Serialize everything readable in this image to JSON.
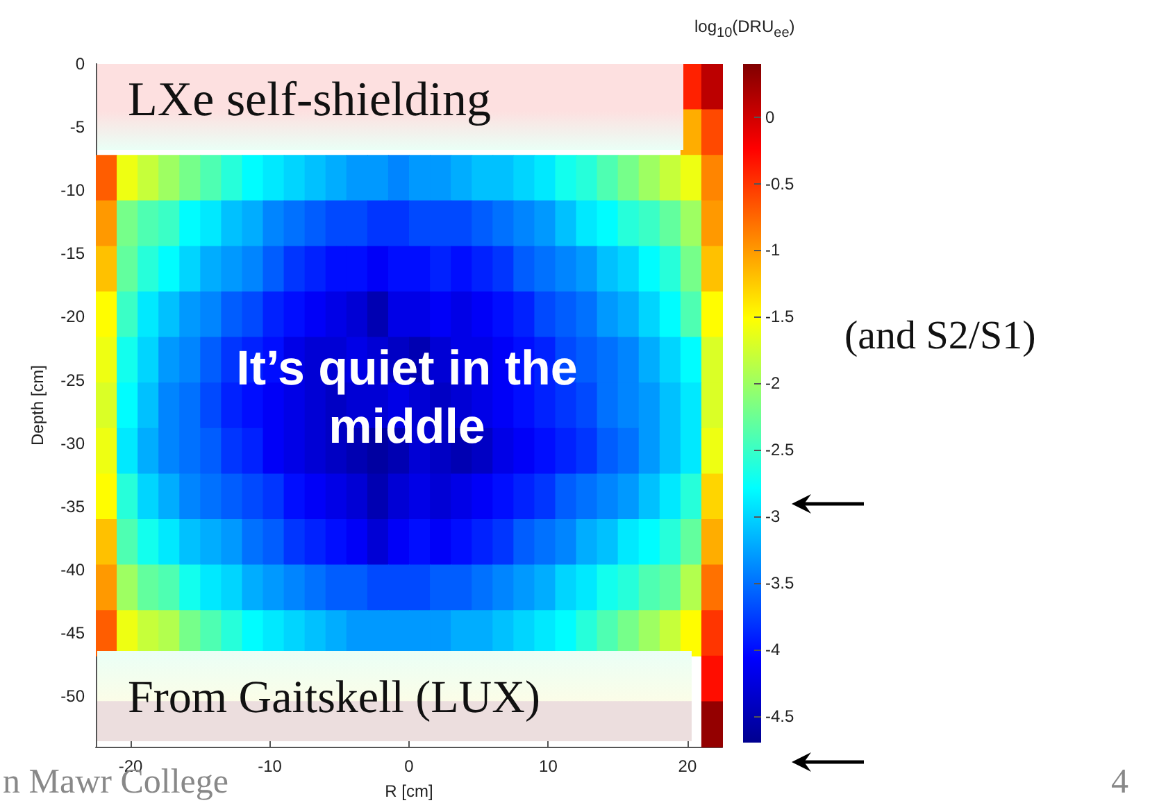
{
  "chart_data": {
    "type": "heatmap",
    "xlabel": "R [cm]",
    "ylabel": "Depth [cm]",
    "clabel": "log$_{10}$(DRU$_{ee}$)",
    "annotations": [
      "LXe self-shielding",
      "It’s quiet in the middle",
      "From Gaitskell (LUX)",
      "(and S2/S1)",
      "n Mawr College",
      "4"
    ],
    "xlim": [
      -22.5,
      22.5
    ],
    "xticks": [
      -20,
      -10,
      0,
      10,
      20
    ],
    "ylim": [
      -54,
      0
    ],
    "yticks": [
      0,
      -5,
      -10,
      -15,
      -20,
      -25,
      -30,
      -35,
      -40,
      -45,
      -50
    ],
    "clim": [
      -4.7,
      0.4
    ],
    "cticks": [
      0,
      -0.5,
      -1,
      -1.5,
      -2,
      -2.5,
      -3,
      -3.5,
      -4,
      -4.5
    ],
    "x": [
      -21.75,
      -20.25,
      -18.75,
      -17.25,
      -15.75,
      -14.25,
      -12.75,
      -11.25,
      -9.75,
      -8.25,
      -6.75,
      -5.25,
      -3.75,
      -2.25,
      -0.75,
      0.75,
      2.25,
      3.75,
      5.25,
      6.75,
      8.25,
      9.75,
      11.25,
      12.75,
      14.25,
      15.75,
      17.25,
      18.75,
      20.25,
      21.75
    ],
    "y": [
      -1.8,
      -5.4,
      -9,
      -12.6,
      -16.2,
      -19.8,
      -23.4,
      -27,
      -30.6,
      -34.2,
      -37.8,
      -41.4,
      -45,
      -48.6,
      -52.2
    ],
    "cells": [
      [
        null,
        null,
        null,
        null,
        null,
        null,
        null,
        null,
        null,
        null,
        null,
        null,
        null,
        null,
        null,
        null,
        null,
        null,
        null,
        null,
        null,
        null,
        null,
        null,
        null,
        null,
        null,
        null,
        -0.4,
        0.1
      ],
      [
        null,
        null,
        null,
        null,
        null,
        null,
        null,
        null,
        null,
        null,
        null,
        null,
        null,
        null,
        null,
        null,
        null,
        null,
        null,
        null,
        null,
        null,
        null,
        null,
        null,
        null,
        null,
        null,
        -1.1,
        -0.6
      ],
      [
        -0.7,
        -1.6,
        -1.8,
        -2.0,
        -2.2,
        -2.4,
        -2.6,
        -2.8,
        -2.9,
        -3.0,
        -3.1,
        -3.2,
        -3.3,
        -3.3,
        -3.4,
        -3.3,
        -3.3,
        -3.2,
        -3.1,
        -3.1,
        -3.0,
        -2.9,
        -2.7,
        -2.6,
        -2.4,
        -2.2,
        -2.0,
        -1.8,
        -1.6,
        -0.9
      ],
      [
        -1.0,
        -2.2,
        -2.4,
        -2.5,
        -2.8,
        -2.9,
        -3.1,
        -3.2,
        -3.4,
        -3.5,
        -3.6,
        -3.7,
        -3.7,
        -3.8,
        -3.8,
        -3.7,
        -3.7,
        -3.7,
        -3.6,
        -3.5,
        -3.4,
        -3.3,
        -3.1,
        -2.9,
        -2.8,
        -2.6,
        -2.5,
        -2.3,
        -2.0,
        -1.0
      ],
      [
        -1.2,
        -2.3,
        -2.6,
        -2.8,
        -3.0,
        -3.2,
        -3.3,
        -3.4,
        -3.6,
        -3.8,
        -3.9,
        -4.0,
        -4.0,
        -4.1,
        -4.0,
        -4.0,
        -3.9,
        -4.0,
        -3.9,
        -3.8,
        -3.6,
        -3.5,
        -3.4,
        -3.3,
        -3.1,
        -3.0,
        -2.8,
        -2.6,
        -2.2,
        -1.2
      ],
      [
        -1.5,
        -2.5,
        -2.9,
        -3.1,
        -3.3,
        -3.4,
        -3.6,
        -3.7,
        -3.9,
        -4.0,
        -4.1,
        -4.2,
        -4.3,
        -4.5,
        -4.2,
        -4.2,
        -4.1,
        -4.2,
        -4.1,
        -4.0,
        -3.9,
        -3.7,
        -3.6,
        -3.5,
        -3.3,
        -3.2,
        -3.0,
        -2.8,
        -2.4,
        -1.5
      ],
      [
        -1.6,
        -2.7,
        -3.0,
        -3.3,
        -3.4,
        -3.6,
        -3.8,
        -3.9,
        -4.0,
        -4.2,
        -4.3,
        -4.3,
        -4.2,
        -4.3,
        -4.4,
        -4.5,
        -4.3,
        -4.2,
        -4.2,
        -4.1,
        -4.0,
        -3.9,
        -3.7,
        -3.6,
        -3.5,
        -3.4,
        -3.2,
        -3.0,
        -2.8,
        -1.7
      ],
      [
        -1.7,
        -2.8,
        -3.1,
        -3.4,
        -3.5,
        -3.7,
        -3.9,
        -4.0,
        -4.1,
        -4.2,
        -4.3,
        -4.4,
        -4.3,
        -4.3,
        -4.2,
        -4.3,
        -4.4,
        -4.3,
        -4.2,
        -4.1,
        -4.0,
        -3.9,
        -3.8,
        -3.7,
        -3.5,
        -3.4,
        -3.3,
        -3.1,
        -2.9,
        -1.7
      ],
      [
        -1.6,
        -2.9,
        -3.2,
        -3.4,
        -3.5,
        -3.6,
        -3.8,
        -3.9,
        -4.1,
        -4.2,
        -4.3,
        -4.4,
        -4.5,
        -4.6,
        -4.5,
        -4.3,
        -4.4,
        -4.5,
        -4.4,
        -4.2,
        -4.1,
        -4.0,
        -3.9,
        -3.8,
        -3.6,
        -3.5,
        -3.3,
        -3.1,
        -2.9,
        -1.6
      ],
      [
        -1.5,
        -2.6,
        -3.0,
        -3.2,
        -3.4,
        -3.5,
        -3.6,
        -3.7,
        -3.8,
        -4.0,
        -4.1,
        -4.2,
        -4.3,
        -4.5,
        -4.3,
        -4.2,
        -4.3,
        -4.2,
        -4.1,
        -4.0,
        -3.9,
        -3.8,
        -3.6,
        -3.5,
        -3.4,
        -3.3,
        -3.1,
        -2.9,
        -2.6,
        -1.3
      ],
      [
        -1.2,
        -2.4,
        -2.7,
        -2.9,
        -3.1,
        -3.2,
        -3.3,
        -3.5,
        -3.6,
        -3.8,
        -3.9,
        -4.0,
        -4.1,
        -4.3,
        -4.1,
        -4.0,
        -4.1,
        -4.0,
        -3.9,
        -3.8,
        -3.6,
        -3.5,
        -3.4,
        -3.2,
        -3.1,
        -2.9,
        -2.8,
        -2.6,
        -2.3,
        -1.1
      ],
      [
        -1.0,
        -2.0,
        -2.3,
        -2.4,
        -2.7,
        -2.9,
        -3.0,
        -3.2,
        -3.3,
        -3.4,
        -3.5,
        -3.6,
        -3.6,
        -3.7,
        -3.7,
        -3.7,
        -3.6,
        -3.6,
        -3.5,
        -3.4,
        -3.3,
        -3.2,
        -3.0,
        -2.9,
        -2.7,
        -2.6,
        -2.4,
        -2.3,
        -1.9,
        -0.8
      ],
      [
        -0.7,
        -1.6,
        -1.8,
        -1.9,
        -2.2,
        -2.4,
        -2.6,
        -2.8,
        -2.9,
        -3.0,
        -3.1,
        -3.2,
        -3.3,
        -3.3,
        -3.3,
        -3.3,
        -3.3,
        -3.2,
        -3.2,
        -3.1,
        -3.0,
        -2.9,
        -2.8,
        -2.6,
        -2.4,
        -2.2,
        -2.0,
        -1.8,
        -1.5,
        -0.5
      ],
      [
        null,
        null,
        null,
        null,
        null,
        null,
        null,
        null,
        null,
        null,
        null,
        null,
        null,
        null,
        null,
        null,
        null,
        null,
        null,
        null,
        null,
        null,
        null,
        null,
        null,
        null,
        null,
        null,
        null,
        -0.3
      ],
      [
        null,
        null,
        null,
        null,
        null,
        null,
        null,
        null,
        null,
        null,
        null,
        null,
        null,
        null,
        null,
        null,
        null,
        null,
        null,
        null,
        null,
        null,
        null,
        null,
        null,
        null,
        null,
        null,
        null,
        0.3
      ]
    ]
  }
}
